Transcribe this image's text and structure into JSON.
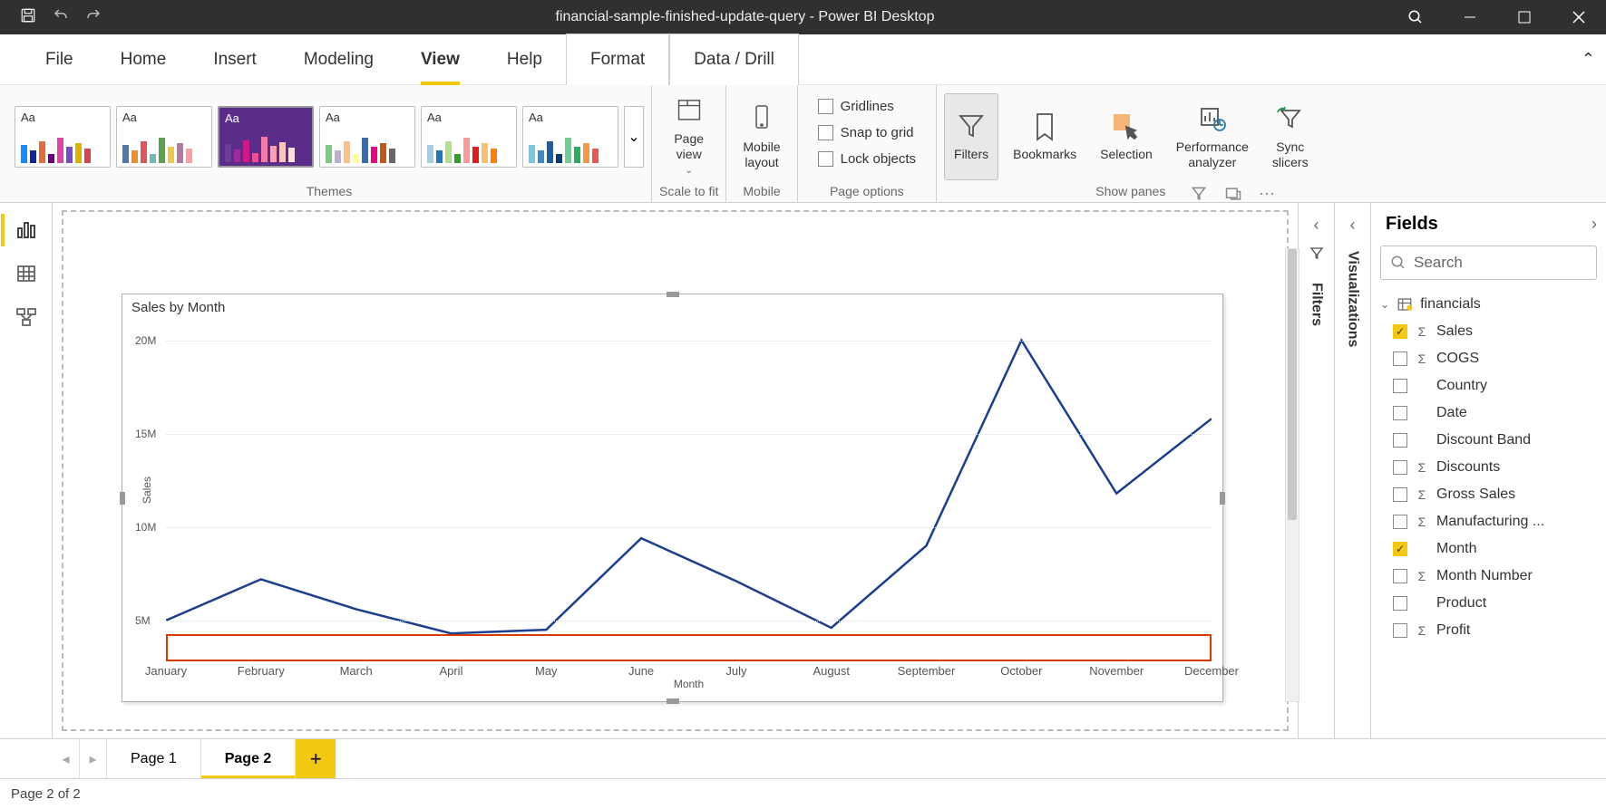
{
  "titlebar": {
    "title": "financial-sample-finished-update-query - Power BI Desktop"
  },
  "menu": {
    "items": [
      "File",
      "Home",
      "Insert",
      "Modeling",
      "View",
      "Help",
      "Format",
      "Data / Drill"
    ],
    "active": "View",
    "boxed": [
      "Format",
      "Data / Drill"
    ]
  },
  "ribbon": {
    "themes_label": "Themes",
    "theme_bar_colors": [
      [
        "#118dff",
        "#12239e",
        "#e66c37",
        "#6b007b",
        "#e044a7",
        "#744ec2",
        "#d9b300",
        "#d64550"
      ],
      [
        "#4e79a7",
        "#f28e2b",
        "#e15759",
        "#76b7b2",
        "#59a14f",
        "#edc948",
        "#b07aa1",
        "#ff9da7"
      ],
      [
        "#6a3d9a",
        "#9e2a9e",
        "#d11884",
        "#ed4f94",
        "#f579a6",
        "#fa9fb5",
        "#fcc5c0",
        "#fde0dd"
      ],
      [
        "#7fc97f",
        "#beaed4",
        "#fdc086",
        "#ffff99",
        "#386cb0",
        "#f0027f",
        "#bf5b17",
        "#666666"
      ],
      [
        "#a6cee3",
        "#1f78b4",
        "#b2df8a",
        "#33a02c",
        "#fb9a99",
        "#e31a1c",
        "#fdbf6f",
        "#ff7f00"
      ],
      [
        "#79c5e4",
        "#3a89c9",
        "#1b5fa6",
        "#0a3a73",
        "#6fcf97",
        "#27ae60",
        "#f2994a",
        "#eb5757"
      ]
    ],
    "theme_selected_index": 2,
    "theme_bgs": [
      "#ffffff",
      "#ffffff",
      "#5b2d8a",
      "#ffffff",
      "#ffffff",
      "#ffffff"
    ],
    "theme_bar_heights": [
      20,
      14,
      24,
      10,
      28,
      18,
      22,
      16
    ],
    "page_view_label": "Page\nview",
    "mobile_layout_label": "Mobile\nlayout",
    "scale_label": "Scale to fit",
    "mobile_label": "Mobile",
    "gridlines": "Gridlines",
    "snap": "Snap to grid",
    "lock": "Lock objects",
    "page_options_label": "Page options",
    "filters": "Filters",
    "bookmarks": "Bookmarks",
    "selection": "Selection",
    "perf": "Performance\nanalyzer",
    "sync": "Sync\nslicers",
    "show_panes_label": "Show panes"
  },
  "chart": {
    "title": "Sales by Month",
    "ylabel": "Sales",
    "xlabel": "Month",
    "type": "line",
    "line_color": "#1b3f8f",
    "line_width": 2.5,
    "grid_color": "#dddddd",
    "background_color": "#ffffff",
    "yticks": [
      5,
      10,
      15,
      20
    ],
    "ytick_labels": [
      "5M",
      "10M",
      "15M",
      "20M"
    ],
    "ylim": [
      3,
      21
    ],
    "categories": [
      "January",
      "February",
      "March",
      "April",
      "May",
      "June",
      "July",
      "August",
      "September",
      "October",
      "November",
      "December"
    ],
    "values": [
      5.0,
      7.2,
      5.6,
      4.3,
      4.5,
      9.4,
      7.1,
      4.6,
      9.0,
      20.0,
      11.8,
      15.8
    ],
    "highlight_xaxis_color": "#d83b01",
    "title_fontsize": 15,
    "tick_fontsize": 13
  },
  "panes": {
    "filters": "Filters",
    "visualizations": "Visualizations",
    "fields_title": "Fields",
    "search_placeholder": "Search",
    "table": "financials",
    "fields": [
      {
        "label": "Sales",
        "checked": true,
        "sigma": true
      },
      {
        "label": "COGS",
        "checked": false,
        "sigma": true
      },
      {
        "label": "Country",
        "checked": false,
        "sigma": false
      },
      {
        "label": "Date",
        "checked": false,
        "sigma": false
      },
      {
        "label": "Discount Band",
        "checked": false,
        "sigma": false
      },
      {
        "label": "Discounts",
        "checked": false,
        "sigma": true
      },
      {
        "label": "Gross Sales",
        "checked": false,
        "sigma": true
      },
      {
        "label": "Manufacturing ...",
        "checked": false,
        "sigma": true
      },
      {
        "label": "Month",
        "checked": true,
        "sigma": false
      },
      {
        "label": "Month Number",
        "checked": false,
        "sigma": true
      },
      {
        "label": "Product",
        "checked": false,
        "sigma": false
      },
      {
        "label": "Profit",
        "checked": false,
        "sigma": true
      }
    ]
  },
  "tabs": {
    "items": [
      "Page 1",
      "Page 2"
    ],
    "active": "Page 2"
  },
  "status": {
    "text": "Page 2 of 2"
  }
}
